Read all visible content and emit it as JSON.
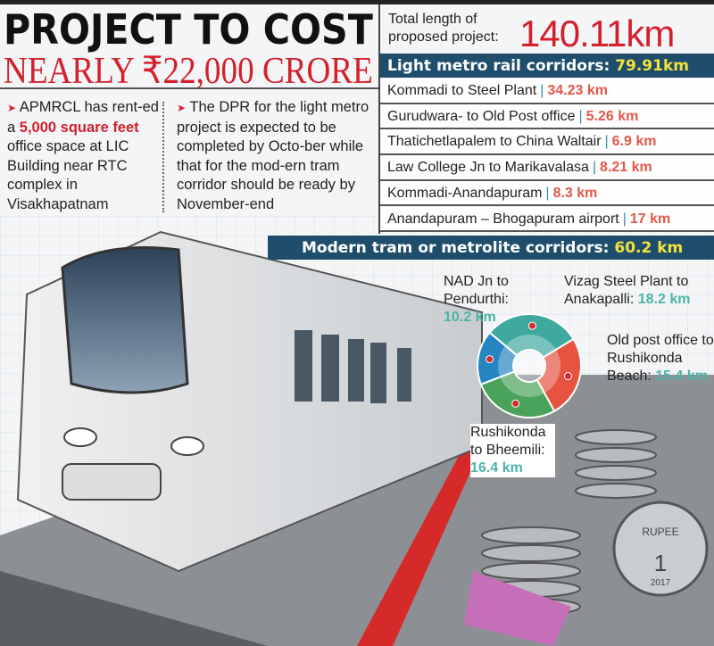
{
  "headline": {
    "line1": "PROJECT TO COST",
    "line2": "NEARLY ₹22,000 CRORE"
  },
  "bullets": [
    {
      "pre": "APMRCL has rent-ed a ",
      "highlight": "5,000 square feet",
      "post": " office space at LIC Building near RTC complex in Visakhapatnam"
    },
    {
      "pre": "The DPR for the light metro project is expected to be completed by Octo-ber while that for the mod-ern tram corridor should be ready by November-end",
      "highlight": "",
      "post": ""
    }
  ],
  "total": {
    "label_line1": "Total length of",
    "label_line2": "proposed project:",
    "value": "140.11km"
  },
  "light_metro": {
    "title": "Light metro rail corridors: ",
    "value": "79.91km",
    "routes": [
      {
        "name": "Kommadi to Steel Plant",
        "km": "34.23 km"
      },
      {
        "name": "Gurudwara- to Old Post office",
        "km": "5.26 km"
      },
      {
        "name": "Thatichetlapalem to China Waltair",
        "km": "6.9 km"
      },
      {
        "name": "Law College Jn to Marikavalasa",
        "km": "8.21 km"
      },
      {
        "name": "Kommadi-Anandapuram",
        "km": "8.3 km"
      },
      {
        "name": "Anandapuram – Bhogapuram airport",
        "km": "17 km"
      }
    ]
  },
  "tram": {
    "title": "Modern tram or metrolite corridors: ",
    "value": "60.2 km",
    "routes": [
      {
        "name": "Vizag Steel Plant to Anakapalli:",
        "km": "18.2 km",
        "value": 18.2,
        "color": "#3fa9a0"
      },
      {
        "name": "Old post office to Rushikonda Beach:",
        "km": "15.4 km",
        "value": 15.4,
        "color": "#e65441"
      },
      {
        "name": "Rushikonda to Bheemili:",
        "km": "16.4 km",
        "value": 16.4,
        "color": "#4aa35a"
      },
      {
        "name": "NAD Jn to Pendurthi:",
        "km": "10.2 km",
        "value": 10.2,
        "color": "#2585c0"
      }
    ]
  },
  "coin": {
    "text": "RUPEE",
    "value": "1",
    "year": "2017"
  },
  "separator": "|",
  "arrow": "➤"
}
